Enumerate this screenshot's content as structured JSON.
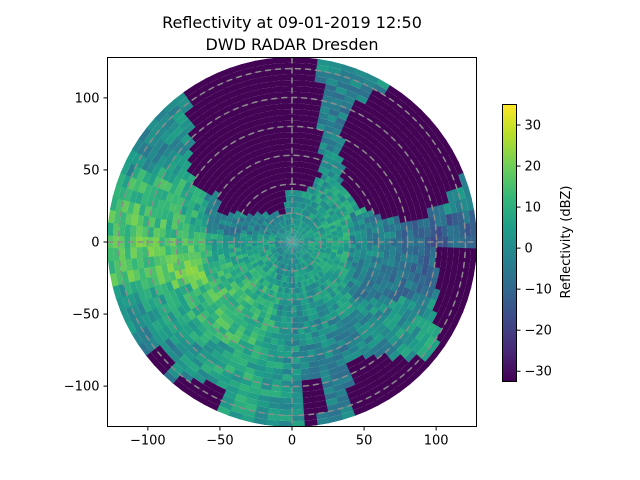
{
  "chart_data": {
    "type": "heatmap",
    "title": "Reflectivity at 09-01-2019 12:50",
    "subtitle": "DWD RADAR Dresden",
    "xlabel": "",
    "ylabel": "",
    "xlim": [
      -128,
      128
    ],
    "ylim": [
      -128,
      128
    ],
    "x_ticks": [
      -100,
      -50,
      0,
      50,
      100
    ],
    "y_ticks": [
      -100,
      -50,
      0,
      50,
      100
    ],
    "range_rings_km": [
      20,
      40,
      60,
      80,
      100,
      120
    ],
    "max_range_km": 128,
    "grid": true,
    "colorbar": {
      "label": "Reflectivity (dBZ)",
      "colormap": "viridis",
      "min": -32.5,
      "max": 35,
      "ticks": [
        -30,
        -20,
        -10,
        0,
        10,
        20,
        30
      ]
    },
    "field_description": "polar radar sweep of reflectivity; weak echoes (-32 dBZ) in the north and along the southern rim, 5-25 dBZ echoes across the west and south-west"
  },
  "colors": {
    "ring": "#8c8c8c",
    "axis": "#000000",
    "colormap_stops": [
      "#440154",
      "#482878",
      "#3e4989",
      "#31688e",
      "#26828e",
      "#1f9e89",
      "#35b779",
      "#6ece58",
      "#b5de2b",
      "#fde725"
    ]
  }
}
